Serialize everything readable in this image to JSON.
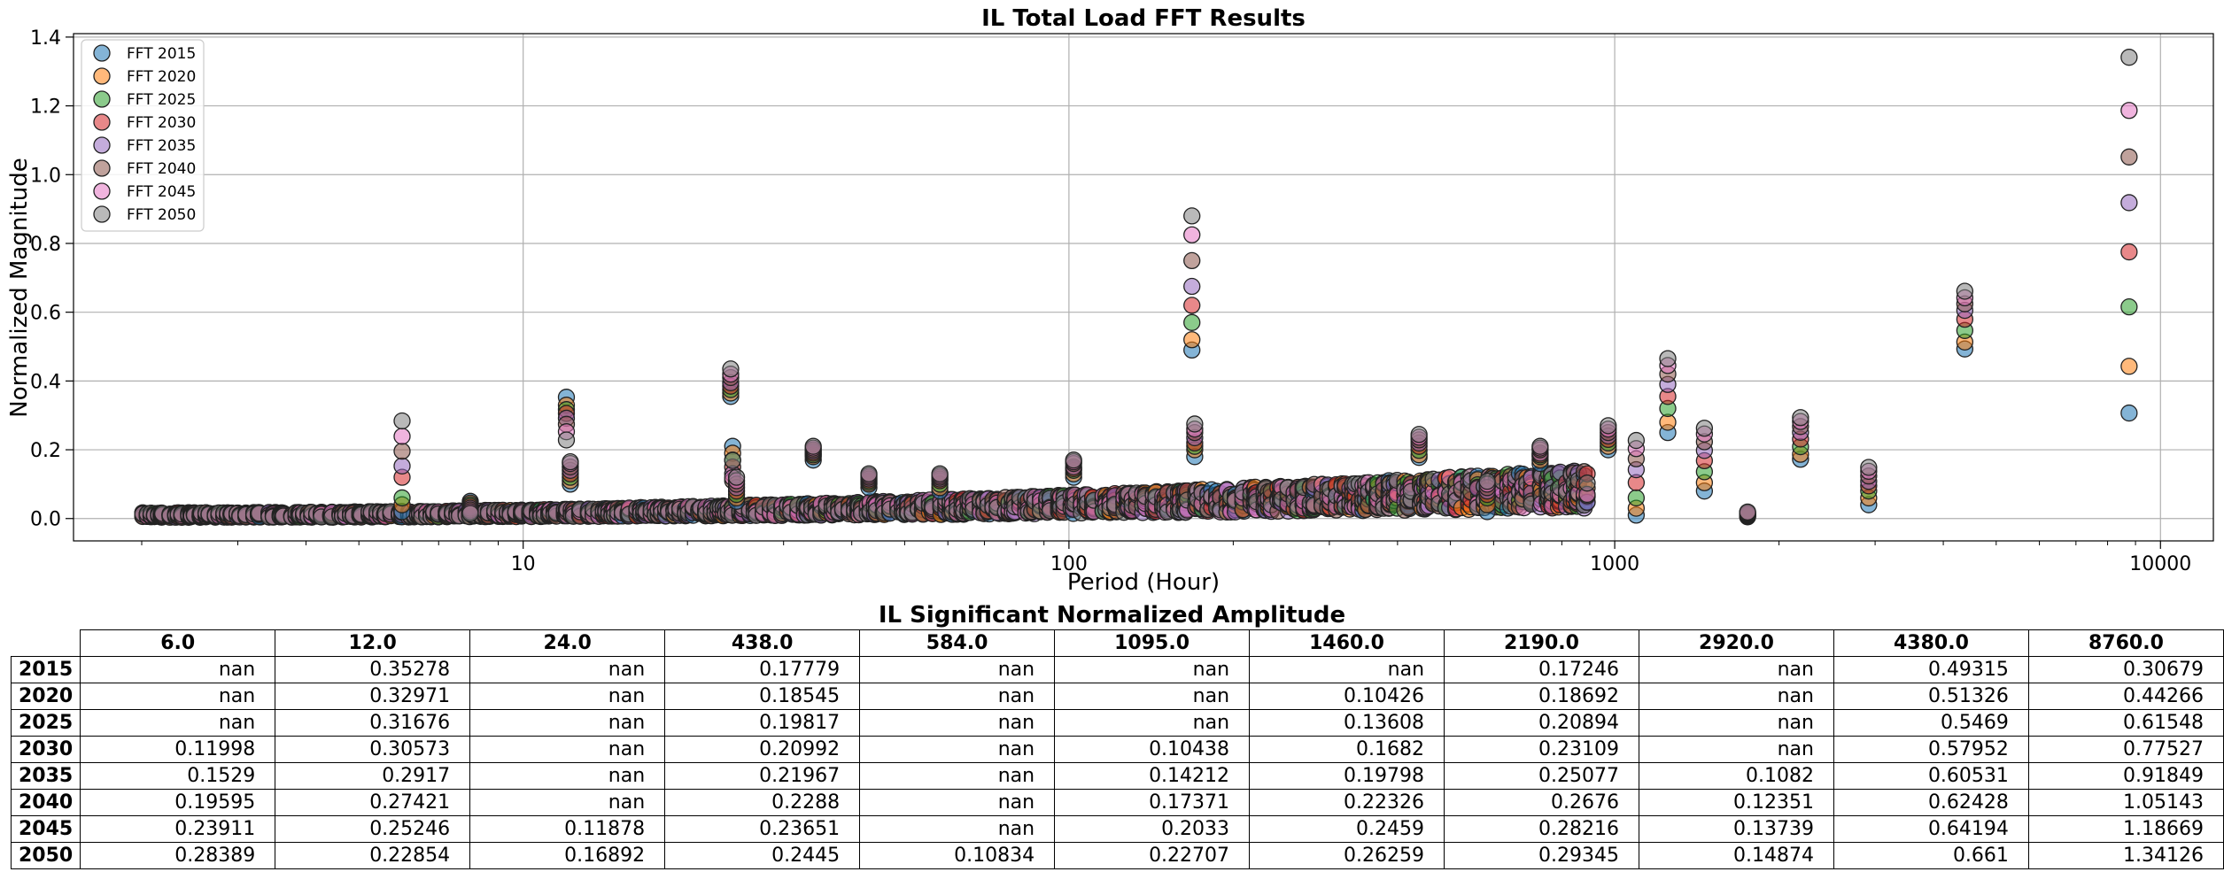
{
  "chart_data": [
    {
      "type": "scatter",
      "title": "IL Total Load FFT Results",
      "xlabel": "Period (Hour)",
      "ylabel": "Normalized Magnitude",
      "xscale": "log",
      "xlim": [
        1.5,
        12500
      ],
      "ylim": [
        -0.065,
        1.41
      ],
      "xticks": [
        10,
        100,
        1000,
        10000
      ],
      "xtick_labels": [
        "10",
        "100",
        "1000",
        "10000"
      ],
      "yticks": [
        0.0,
        0.2,
        0.4,
        0.6,
        0.8,
        1.0,
        1.2,
        1.4
      ],
      "ytick_labels": [
        "0.0",
        "0.2",
        "0.4",
        "0.6",
        "0.8",
        "1.0",
        "1.2",
        "1.4"
      ],
      "grid": true,
      "legend_position": "top-left",
      "series": [
        {
          "name": "FFT 2015",
          "color": "#1f77b4"
        },
        {
          "name": "FFT 2020",
          "color": "#ff7f0e"
        },
        {
          "name": "FFT 2025",
          "color": "#2ca02c"
        },
        {
          "name": "FFT 2030",
          "color": "#d62728"
        },
        {
          "name": "FFT 2035",
          "color": "#9467bd"
        },
        {
          "name": "FFT 2040",
          "color": "#8c564b"
        },
        {
          "name": "FFT 2045",
          "color": "#e377c2"
        },
        {
          "name": "FFT 2050",
          "color": "#7f7f7f"
        }
      ],
      "peaks": [
        {
          "x": 6.0,
          "values": [
            0.02,
            0.04,
            0.06,
            0.11998,
            0.1529,
            0.19595,
            0.23911,
            0.28389
          ]
        },
        {
          "x": 8.0,
          "values": [
            0.05,
            0.045,
            0.04,
            0.035,
            0.03,
            0.025,
            0.02,
            0.015
          ]
        },
        {
          "x": 12.0,
          "values": [
            0.35278,
            0.32971,
            0.31676,
            0.30573,
            0.2917,
            0.27421,
            0.25246,
            0.22854
          ]
        },
        {
          "x": 12.2,
          "values": [
            0.1,
            0.11,
            0.12,
            0.13,
            0.14,
            0.15,
            0.16,
            0.165
          ]
        },
        {
          "x": 24.0,
          "values": [
            0.355,
            0.365,
            0.375,
            0.385,
            0.395,
            0.41,
            0.42,
            0.435
          ]
        },
        {
          "x": 24.2,
          "values": [
            0.21,
            0.19,
            0.17,
            0.15,
            0.13,
            0.11,
            0.11878,
            0.16892
          ]
        },
        {
          "x": 24.6,
          "values": [
            0.05,
            0.06,
            0.07,
            0.08,
            0.09,
            0.1,
            0.11,
            0.12
          ]
        },
        {
          "x": 34.0,
          "values": [
            0.17,
            0.18,
            0.185,
            0.19,
            0.195,
            0.2,
            0.205,
            0.21
          ]
        },
        {
          "x": 43.0,
          "values": [
            0.09,
            0.1,
            0.105,
            0.11,
            0.115,
            0.12,
            0.125,
            0.13
          ]
        },
        {
          "x": 58.0,
          "values": [
            0.08,
            0.09,
            0.1,
            0.11,
            0.115,
            0.12,
            0.125,
            0.13
          ]
        },
        {
          "x": 102.0,
          "values": [
            0.12,
            0.13,
            0.14,
            0.145,
            0.15,
            0.16,
            0.165,
            0.17
          ]
        },
        {
          "x": 168.0,
          "values": [
            0.49,
            0.52,
            0.57,
            0.62,
            0.675,
            0.75,
            0.825,
            0.88
          ]
        },
        {
          "x": 170.0,
          "values": [
            0.18,
            0.2,
            0.21,
            0.22,
            0.235,
            0.25,
            0.26,
            0.275
          ]
        },
        {
          "x": 438.0,
          "values": [
            0.17779,
            0.18545,
            0.19817,
            0.20992,
            0.21967,
            0.2288,
            0.23651,
            0.2445
          ]
        },
        {
          "x": 584.0,
          "values": [
            0.02,
            0.04,
            0.06,
            0.07,
            0.08,
            0.09,
            0.1,
            0.10834
          ]
        },
        {
          "x": 730.0,
          "values": [
            0.16,
            0.17,
            0.18,
            0.185,
            0.19,
            0.2,
            0.205,
            0.21
          ]
        },
        {
          "x": 973.0,
          "values": [
            0.2,
            0.21,
            0.22,
            0.23,
            0.24,
            0.25,
            0.26,
            0.27
          ]
        },
        {
          "x": 1095.0,
          "values": [
            0.01,
            0.03,
            0.06,
            0.10438,
            0.14212,
            0.17371,
            0.2033,
            0.22707
          ]
        },
        {
          "x": 1251.0,
          "values": [
            0.25,
            0.28,
            0.32,
            0.355,
            0.39,
            0.42,
            0.445,
            0.465
          ]
        },
        {
          "x": 1460.0,
          "values": [
            0.08,
            0.10426,
            0.13608,
            0.1682,
            0.19798,
            0.22326,
            0.2459,
            0.26259
          ]
        },
        {
          "x": 1752.0,
          "values": [
            0.005,
            0.007,
            0.009,
            0.011,
            0.013,
            0.015,
            0.017,
            0.019
          ]
        },
        {
          "x": 2190.0,
          "values": [
            0.17246,
            0.18692,
            0.20894,
            0.23109,
            0.25077,
            0.2676,
            0.28216,
            0.29345
          ]
        },
        {
          "x": 2920.0,
          "values": [
            0.04,
            0.06,
            0.08,
            0.095,
            0.1082,
            0.12351,
            0.13739,
            0.14874
          ]
        },
        {
          "x": 4380.0,
          "values": [
            0.49315,
            0.51326,
            0.5469,
            0.57952,
            0.60531,
            0.62428,
            0.64194,
            0.661
          ]
        },
        {
          "x": 8760.0,
          "values": [
            0.30679,
            0.44266,
            0.61548,
            0.77527,
            0.91849,
            1.05143,
            1.18669,
            1.34126
          ]
        }
      ],
      "noise_floor": "many low-magnitude points (0.0–0.15) across periods 2–1000 hours for all series"
    },
    {
      "type": "table",
      "title": "IL Significant Normalized Amplitude",
      "columns": [
        "6.0",
        "12.0",
        "24.0",
        "438.0",
        "584.0",
        "1095.0",
        "1460.0",
        "2190.0",
        "2920.0",
        "4380.0",
        "8760.0"
      ],
      "rows": [
        {
          "label": "2015",
          "values": [
            "nan",
            "0.35278",
            "nan",
            "0.17779",
            "nan",
            "nan",
            "nan",
            "0.17246",
            "nan",
            "0.49315",
            "0.30679"
          ]
        },
        {
          "label": "2020",
          "values": [
            "nan",
            "0.32971",
            "nan",
            "0.18545",
            "nan",
            "nan",
            "0.10426",
            "0.18692",
            "nan",
            "0.51326",
            "0.44266"
          ]
        },
        {
          "label": "2025",
          "values": [
            "nan",
            "0.31676",
            "nan",
            "0.19817",
            "nan",
            "nan",
            "0.13608",
            "0.20894",
            "nan",
            "0.5469",
            "0.61548"
          ]
        },
        {
          "label": "2030",
          "values": [
            "0.11998",
            "0.30573",
            "nan",
            "0.20992",
            "nan",
            "0.10438",
            "0.1682",
            "0.23109",
            "nan",
            "0.57952",
            "0.77527"
          ]
        },
        {
          "label": "2035",
          "values": [
            "0.1529",
            "0.2917",
            "nan",
            "0.21967",
            "nan",
            "0.14212",
            "0.19798",
            "0.25077",
            "0.1082",
            "0.60531",
            "0.91849"
          ]
        },
        {
          "label": "2040",
          "values": [
            "0.19595",
            "0.27421",
            "nan",
            "0.2288",
            "nan",
            "0.17371",
            "0.22326",
            "0.2676",
            "0.12351",
            "0.62428",
            "1.05143"
          ]
        },
        {
          "label": "2045",
          "values": [
            "0.23911",
            "0.25246",
            "0.11878",
            "0.23651",
            "nan",
            "0.2033",
            "0.2459",
            "0.28216",
            "0.13739",
            "0.64194",
            "1.18669"
          ]
        },
        {
          "label": "2050",
          "values": [
            "0.28389",
            "0.22854",
            "0.16892",
            "0.2445",
            "0.10834",
            "0.22707",
            "0.26259",
            "0.29345",
            "0.14874",
            "0.661",
            "1.34126"
          ]
        }
      ]
    }
  ]
}
